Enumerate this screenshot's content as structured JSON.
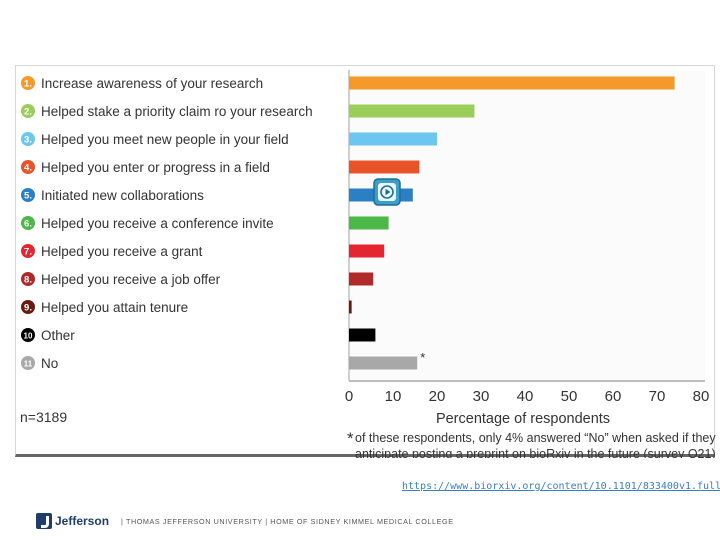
{
  "chart_data": {
    "type": "bar",
    "orientation": "horizontal",
    "categories": [
      {
        "num": "1",
        "label": "Increase awareness of your research",
        "value": 74,
        "color": "#f39a2b"
      },
      {
        "num": "2",
        "label": "Helped stake a priority claim ro your research",
        "value": 28.5,
        "color": "#9acd5a"
      },
      {
        "num": "3",
        "label": "Helped you meet new people in your field",
        "value": 20,
        "color": "#6cc6ef"
      },
      {
        "num": "4",
        "label": "Helped you enter or progress in a field",
        "value": 16,
        "color": "#e8542a"
      },
      {
        "num": "5",
        "label": "Initiated new collaborations",
        "value": 14.5,
        "color": "#2b7fc4"
      },
      {
        "num": "6",
        "label": "Helped you receive a conference invite",
        "value": 9,
        "color": "#4cb848"
      },
      {
        "num": "7",
        "label": "Helped you receive a grant",
        "value": 8,
        "color": "#e3262f"
      },
      {
        "num": "8",
        "label": "Helped you receive a job offer",
        "value": 5.5,
        "color": "#b02a2a"
      },
      {
        "num": "9",
        "label": "Helped you attain tenure",
        "value": 0.6,
        "color": "#6b1a12"
      },
      {
        "num": "10",
        "label": "Other",
        "value": 6,
        "color": "#000000"
      },
      {
        "num": "11",
        "label": "No",
        "value": 15.5,
        "color": "#a8a8a8"
      }
    ],
    "xlim": [
      0,
      80
    ],
    "xticks": [
      "0",
      "10",
      "20",
      "30",
      "40",
      "50",
      "60",
      "70",
      "80"
    ],
    "xlabel": "Percentage of respondents",
    "n_label": "n=3189",
    "asterisk": "*",
    "footnote_line1": "of these respondents, only 4% answered “No” when asked if they",
    "footnote_line2": "anticipate posting a preprint on bioRxiv in the future (survey Q21)"
  },
  "footer": {
    "link": "https://www.biorxiv.org/content/10.1101/833400v1.full#F8",
    "brand": "Jefferson",
    "tagline": "|  THOMAS JEFFERSON UNIVERSITY  |  HOME OF SIDNEY KIMMEL MEDICAL COLLEGE",
    "logo_icon": "jefferson-logo-icon",
    "badge_icon": "play-video-icon"
  }
}
